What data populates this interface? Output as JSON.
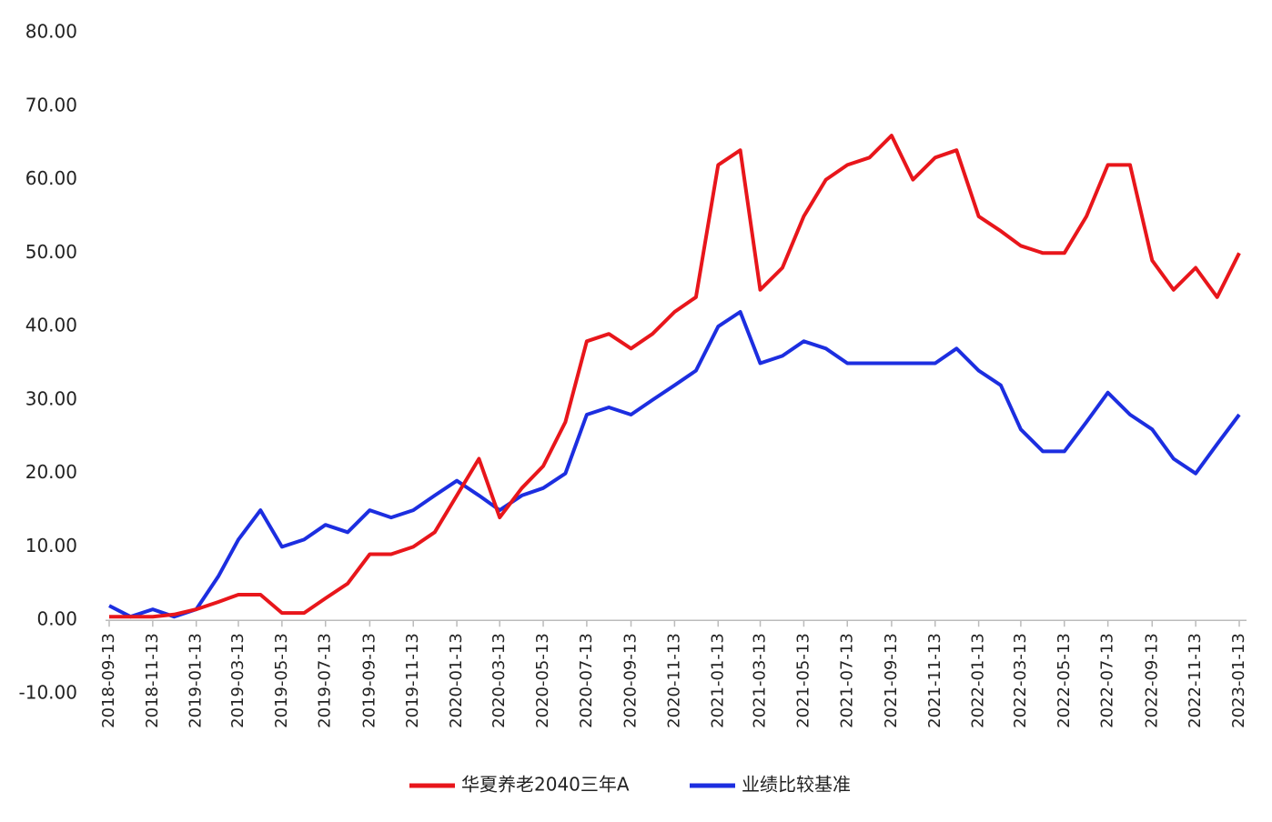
{
  "chart_data": {
    "type": "line",
    "x": [
      "2018-09-13",
      "2018-10-13",
      "2018-11-13",
      "2018-12-13",
      "2019-01-13",
      "2019-02-13",
      "2019-03-13",
      "2019-04-13",
      "2019-05-13",
      "2019-06-13",
      "2019-07-13",
      "2019-08-13",
      "2019-09-13",
      "2019-10-13",
      "2019-11-13",
      "2019-12-13",
      "2020-01-13",
      "2020-02-13",
      "2020-03-13",
      "2020-04-13",
      "2020-05-13",
      "2020-06-13",
      "2020-07-13",
      "2020-08-13",
      "2020-09-13",
      "2020-10-13",
      "2020-11-13",
      "2020-12-13",
      "2021-01-13",
      "2021-02-13",
      "2021-03-13",
      "2021-04-13",
      "2021-05-13",
      "2021-06-13",
      "2021-07-13",
      "2021-08-13",
      "2021-09-13",
      "2021-10-13",
      "2021-11-13",
      "2021-12-13",
      "2022-01-13",
      "2022-02-13",
      "2022-03-13",
      "2022-04-13",
      "2022-05-13",
      "2022-06-13",
      "2022-07-13",
      "2022-08-13",
      "2022-09-13",
      "2022-10-13",
      "2022-11-13",
      "2022-12-13",
      "2023-01-13"
    ],
    "series": [
      {
        "name": "华夏养老2040三年A",
        "color": "#e8161b",
        "values": [
          0.5,
          0.5,
          0.5,
          0.8,
          1.5,
          2.5,
          3.5,
          3.5,
          1,
          1,
          3,
          5,
          9,
          9,
          10,
          12,
          17,
          22,
          14,
          18,
          21,
          27,
          38,
          39,
          37,
          39,
          42,
          44,
          62,
          64,
          45,
          48,
          55,
          60,
          62,
          63,
          66,
          60,
          63,
          64,
          55,
          53,
          51,
          50,
          50,
          55,
          62,
          62,
          49,
          45,
          48,
          44,
          50
        ]
      },
      {
        "name": "业绩比较基准",
        "color": "#1c2ee0",
        "values": [
          2,
          0.5,
          1.5,
          0.5,
          1.5,
          6,
          11,
          15,
          10,
          11,
          13,
          12,
          15,
          14,
          15,
          17,
          19,
          17,
          15,
          17,
          18,
          20,
          28,
          29,
          28,
          30,
          32,
          34,
          40,
          42,
          35,
          36,
          38,
          37,
          35,
          35,
          35,
          35,
          35,
          37,
          34,
          32,
          26,
          23,
          23,
          27,
          31,
          28,
          26,
          22,
          20,
          24,
          28
        ]
      }
    ],
    "ylim": [
      -10,
      80
    ],
    "yticks": [
      {
        "value": -10,
        "label": "-10.00"
      },
      {
        "value": 0,
        "label": "0.00"
      },
      {
        "value": 10,
        "label": "10.00"
      },
      {
        "value": 20,
        "label": "20.00"
      },
      {
        "value": 30,
        "label": "30.00"
      },
      {
        "value": 40,
        "label": "40.00"
      },
      {
        "value": 50,
        "label": "50.00"
      },
      {
        "value": 60,
        "label": "60.00"
      },
      {
        "value": 70,
        "label": "70.00"
      },
      {
        "value": 80,
        "label": "80.00"
      }
    ],
    "xlim": [
      "2018-09-13",
      "2023-01-13"
    ],
    "xticks": [
      "2018-09-13",
      "2018-11-13",
      "2019-01-13",
      "2019-03-13",
      "2019-05-13",
      "2019-07-13",
      "2019-09-13",
      "2019-11-13",
      "2020-01-13",
      "2020-03-13",
      "2020-05-13",
      "2020-07-13",
      "2020-09-13",
      "2020-11-13",
      "2021-01-13",
      "2021-03-13",
      "2021-05-13",
      "2021-07-13",
      "2021-09-13",
      "2021-11-13",
      "2022-01-13",
      "2022-03-13",
      "2022-05-13",
      "2022-07-13",
      "2022-09-13",
      "2022-11-13",
      "2023-01-13"
    ],
    "grid": false,
    "legend": "bottom"
  }
}
